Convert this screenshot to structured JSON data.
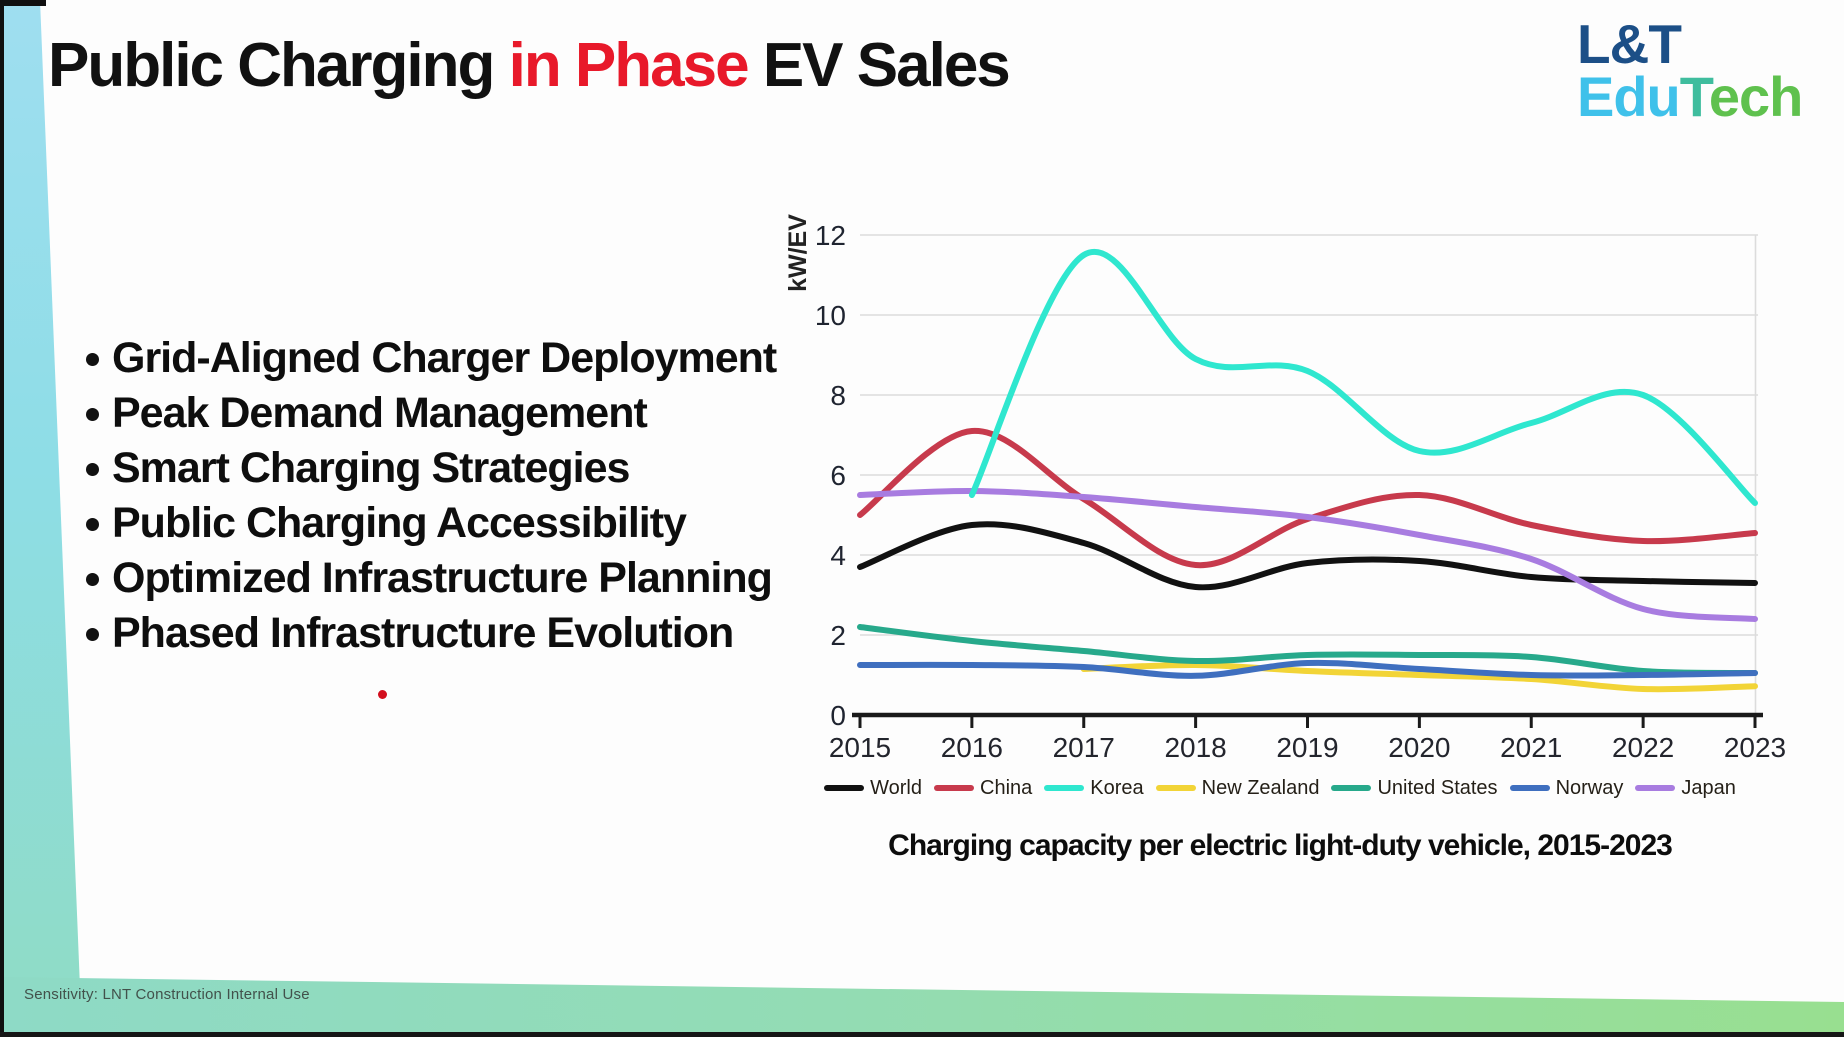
{
  "slide": {
    "title": {
      "part1": "Public Charging ",
      "accent": "in Phase",
      "part2": " EV Sales"
    },
    "logo": {
      "line1": "L&T",
      "edu": "Edu",
      "t": "T",
      "ech": "ech"
    },
    "bullets": [
      "Grid-Aligned Charger Deployment",
      "Peak Demand Management",
      "Smart Charging Strategies",
      "Public Charging Accessibility",
      "Optimized Infrastructure Planning",
      "Phased Infrastructure Evolution"
    ],
    "footer": "Sensitivity: LNT Construction Internal Use"
  },
  "colors": {
    "title_accent": "#e8192a",
    "logo_lnt": "#1c4f87",
    "logo_edu": "#3fc1ea",
    "logo_t": "#3fbd9e",
    "logo_ech": "#5fc14e"
  },
  "chart_data": {
    "type": "line",
    "title": "Charging capacity per electric light-duty vehicle, 2015-2023",
    "ylabel": "kW/EV",
    "x": [
      2015,
      2016,
      2017,
      2018,
      2019,
      2020,
      2021,
      2022,
      2023
    ],
    "ylim": [
      0,
      12
    ],
    "yticks": [
      0,
      2,
      4,
      6,
      8,
      10,
      12
    ],
    "grid": true,
    "legend_position": "bottom",
    "series": [
      {
        "name": "World",
        "color": "#111111",
        "values": [
          3.7,
          4.75,
          4.3,
          3.2,
          3.8,
          3.85,
          3.45,
          3.35,
          3.3
        ]
      },
      {
        "name": "China",
        "color": "#c73a4c",
        "values": [
          5.0,
          7.1,
          5.4,
          3.75,
          4.9,
          5.5,
          4.75,
          4.35,
          4.55
        ]
      },
      {
        "name": "Korea",
        "color": "#2fe7cf",
        "values": [
          null,
          5.5,
          11.5,
          8.9,
          8.6,
          6.6,
          7.3,
          8.0,
          5.3
        ]
      },
      {
        "name": "New Zealand",
        "color": "#f2d437",
        "values": [
          null,
          null,
          1.15,
          1.25,
          1.1,
          1.0,
          0.9,
          0.65,
          0.72
        ]
      },
      {
        "name": "United States",
        "color": "#27a98b",
        "values": [
          2.2,
          1.85,
          1.6,
          1.35,
          1.5,
          1.5,
          1.45,
          1.1,
          1.05
        ]
      },
      {
        "name": "Norway",
        "color": "#3f6fbf",
        "values": [
          1.25,
          1.25,
          1.2,
          0.98,
          1.3,
          1.15,
          1.0,
          1.0,
          1.05
        ]
      },
      {
        "name": "Japan",
        "color": "#a87ce0",
        "values": [
          5.5,
          5.6,
          5.45,
          5.2,
          4.95,
          4.5,
          3.9,
          2.65,
          2.4
        ]
      }
    ],
    "draw_order": [
      "World",
      "China",
      "New Zealand",
      "United States",
      "Norway",
      "Japan",
      "Korea"
    ]
  }
}
